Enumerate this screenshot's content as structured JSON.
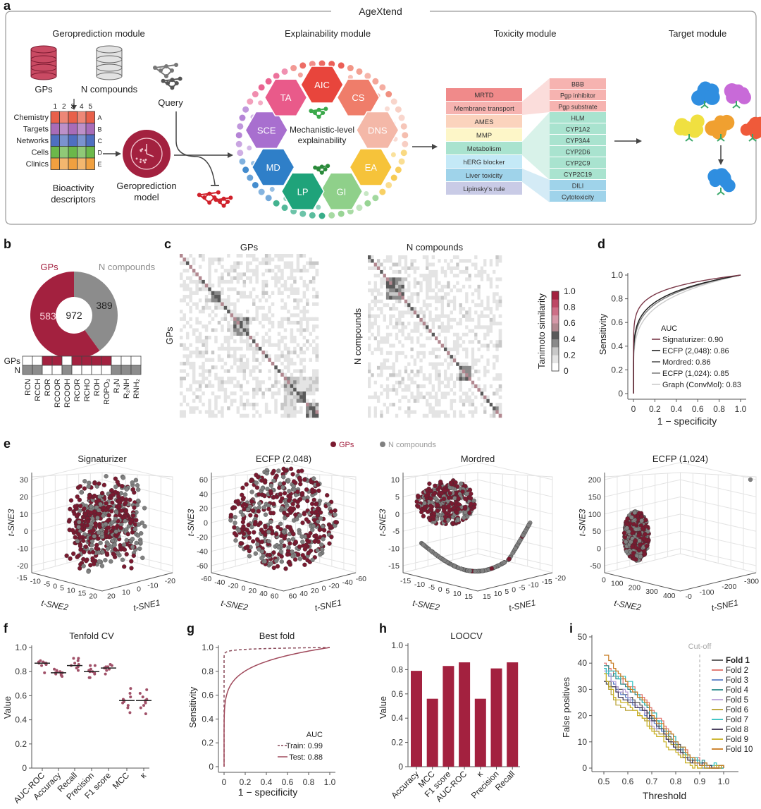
{
  "colors": {
    "gp": "#a3213f",
    "n": "#8c8c8c",
    "axis": "#555555"
  },
  "panel_labels": {
    "a": "a",
    "b": "b",
    "c": "c",
    "d": "d",
    "e": "e",
    "f": "f",
    "g": "g",
    "h": "h",
    "i": "i"
  },
  "panel_a": {
    "title": "AgeXtend",
    "modules": [
      "Geroprediction module",
      "Explainability module",
      "Toxicity module",
      "Target module"
    ],
    "databases": [
      "GPs",
      "N compounds"
    ],
    "descriptor_rows": [
      "Chemistry",
      "Targets",
      "Networks",
      "Cells",
      "Clinics"
    ],
    "descriptor_row_colors": [
      "#e8604a",
      "#a86cb8",
      "#4f6fc0",
      "#6cb84a",
      "#f0a040"
    ],
    "descriptor_cols": [
      "1",
      "2",
      "3",
      "4",
      "5"
    ],
    "descriptor_letters": [
      "A",
      "B",
      "C",
      "D",
      "E"
    ],
    "descriptors_label": [
      "Bioactivity",
      "descriptors"
    ],
    "model_label": [
      "Geroprediction",
      "model"
    ],
    "query_label": "Query",
    "center_label": [
      "Mechanistic-level",
      "explainability"
    ],
    "hallmarks": [
      {
        "label": "AIC",
        "color": "#e8453c"
      },
      {
        "label": "CS",
        "color": "#ef7d6a"
      },
      {
        "label": "DNS",
        "color": "#f4b8a8"
      },
      {
        "label": "EA",
        "color": "#f6c33a"
      },
      {
        "label": "GI",
        "color": "#8fd08a"
      },
      {
        "label": "LP",
        "color": "#1fa37a"
      },
      {
        "label": "MD",
        "color": "#2f7fc8"
      },
      {
        "label": "SCE",
        "color": "#a86fcf"
      },
      {
        "label": "TA",
        "color": "#e95a8a"
      }
    ],
    "toxicity_categories": [
      {
        "label": "MRTD",
        "color": "#f08a8a"
      },
      {
        "label": "Membrane transport",
        "color": "#f6b3b0"
      },
      {
        "label": "AMES",
        "color": "#fbd3bd"
      },
      {
        "label": "MMP",
        "color": "#fdf6c8"
      },
      {
        "label": "Metabolism",
        "color": "#a9e3cf"
      },
      {
        "label": "hERG blocker",
        "color": "#c4e9f7"
      },
      {
        "label": "Liver toxicity",
        "color": "#9fd3ea"
      },
      {
        "label": "Lipinsky's rule",
        "color": "#c9cbe6"
      }
    ],
    "toxicity_endpoints": [
      {
        "label": "BBB",
        "color": "#f6b3b0"
      },
      {
        "label": "Pgp inhibitor",
        "color": "#f6b3b0"
      },
      {
        "label": "Pgp substrate",
        "color": "#f6b3b0"
      },
      {
        "label": "HLM",
        "color": "#a9e3cf"
      },
      {
        "label": "CYP1A2",
        "color": "#a9e3cf"
      },
      {
        "label": "CYP3A4",
        "color": "#a9e3cf"
      },
      {
        "label": "CYP2D6",
        "color": "#a9e3cf"
      },
      {
        "label": "CYP2C9",
        "color": "#a9e3cf"
      },
      {
        "label": "CYP2C19",
        "color": "#a9e3cf"
      },
      {
        "label": "DILI",
        "color": "#9fd3ea"
      },
      {
        "label": "Cytotoxicity",
        "color": "#9fd3ea"
      }
    ],
    "target_colors": [
      "#2f8ee0",
      "#c86ad8",
      "#f0e040",
      "#f0a030",
      "#ef5a3a",
      "#2f8ee0"
    ]
  },
  "chart_data": [
    {
      "panel": "b",
      "type": "pie",
      "series": [
        {
          "name": "GPs",
          "value": 583
        },
        {
          "name": "N compounds",
          "value": 389
        }
      ],
      "total": 972
    },
    {
      "panel": "b",
      "type": "table",
      "rows": [
        "GPs",
        "N"
      ],
      "columns": [
        "RCN",
        "RCCH",
        "ROR",
        "RCOOR",
        "RCOOH",
        "RCOR",
        "RCHO",
        "ROH",
        "ROPO₃",
        "R₃N",
        "R₂NH",
        "RNH₂"
      ],
      "GPs": [
        0,
        0,
        1,
        1,
        0,
        1,
        1,
        1,
        1,
        0,
        0,
        0
      ],
      "N": [
        1,
        1,
        0,
        0,
        1,
        0,
        0,
        0,
        0,
        1,
        1,
        1
      ]
    },
    {
      "panel": "c",
      "type": "heatmap",
      "maps": [
        {
          "title": "GPs",
          "ylabel": "GPs"
        },
        {
          "title": "N compounds",
          "ylabel": "N compounds"
        }
      ],
      "colorbar": {
        "label": "Tanimoto similarity",
        "ticks": [
          "0",
          "0.2",
          "0.4",
          "0.6",
          "0.8",
          "1.0"
        ],
        "range": [
          0,
          1
        ]
      }
    },
    {
      "panel": "d",
      "type": "line",
      "xlabel": "1 − specificity",
      "ylabel": "Sensitivity",
      "xticks": [
        "0",
        "0.2",
        "0.4",
        "0.6",
        "0.8",
        "1.0"
      ],
      "yticks": [
        "0",
        "0.2",
        "0.4",
        "0.6",
        "0.8",
        "1.0"
      ],
      "xlim": [
        0,
        1
      ],
      "ylim": [
        0,
        1
      ],
      "legend_title": "AUC",
      "series": [
        {
          "name": "Signaturizer: 0.90",
          "auc": 0.9,
          "color": "#7a3848"
        },
        {
          "name": "ECFP (2,048): 0.86",
          "auc": 0.86,
          "color": "#222222"
        },
        {
          "name": "Mordred: 0.86",
          "auc": 0.86,
          "color": "#555555"
        },
        {
          "name": "ECFP (1,024): 0.85",
          "auc": 0.85,
          "color": "#808080"
        },
        {
          "name": "Graph (ConvMol): 0.83",
          "auc": 0.83,
          "color": "#cccccc"
        }
      ]
    },
    {
      "panel": "e",
      "type": "scatter",
      "legend": [
        {
          "name": "GPs",
          "color": "#7a1a30"
        },
        {
          "name": "N compounds",
          "color": "#808080"
        }
      ],
      "axis_labels": {
        "z": "t-SNE3",
        "x2": "t-SNE2",
        "x1": "t-SNE1"
      },
      "plots": [
        {
          "title": "Signaturizer",
          "zticks": [
            "-20",
            "-10",
            "0",
            "10",
            "20",
            "30"
          ],
          "x2ticks": [
            "-15",
            "-10",
            "-5",
            "0",
            "5",
            "10",
            "15",
            "20"
          ],
          "x1ticks": [
            "20",
            "10",
            "0",
            "-10",
            "-20"
          ],
          "shape": "blob"
        },
        {
          "title": "ECFP (2,048)",
          "zticks": [
            "-60",
            "-40",
            "-20",
            "0",
            "20",
            "40",
            "60"
          ],
          "x2ticks": [
            "-60",
            "-40",
            "-20",
            "0",
            "20",
            "40",
            "60"
          ],
          "x1ticks": [
            "60",
            "40",
            "20",
            "0",
            "-20",
            "-40",
            "-60"
          ],
          "shape": "sphere"
        },
        {
          "title": "Mordred",
          "zticks": [
            "-15",
            "-10",
            "-5",
            "0",
            "5",
            "10"
          ],
          "x2ticks": [
            "-15",
            "-10",
            "-5",
            "0",
            "5",
            "10",
            "15"
          ],
          "x1ticks": [
            "15",
            "10",
            "5",
            "0",
            "-5",
            "-10",
            "-15",
            "-20"
          ],
          "shape": "cluster-arc"
        },
        {
          "title": "ECFP (1,024)",
          "zticks": [
            "-50",
            "0",
            "50",
            "100",
            "150",
            "200"
          ],
          "x2ticks": [
            "0",
            "100",
            "200",
            "300",
            "400"
          ],
          "x1ticks": [
            "-0",
            "-100",
            "-200",
            "-300"
          ],
          "shape": "cluster-outlier"
        }
      ]
    },
    {
      "panel": "f",
      "type": "scatter",
      "title": "Tenfold CV",
      "ylabel": "Value",
      "ylim": [
        0,
        1
      ],
      "yticks": [
        "0",
        "0.2",
        "0.4",
        "0.6",
        "0.8",
        "1.0"
      ],
      "categories": [
        "AUC-ROC",
        "Accuracy",
        "Recall",
        "Precision",
        "F1 score",
        "MCC",
        "κ"
      ],
      "medians": [
        0.87,
        0.79,
        0.85,
        0.8,
        0.83,
        0.56,
        0.56
      ],
      "points": [
        [
          0.79,
          0.85,
          0.86,
          0.87,
          0.87,
          0.88,
          0.88,
          0.89,
          0.86,
          0.87
        ],
        [
          0.76,
          0.77,
          0.78,
          0.79,
          0.79,
          0.8,
          0.8,
          0.81,
          0.82,
          0.78
        ],
        [
          0.81,
          0.83,
          0.84,
          0.85,
          0.85,
          0.86,
          0.87,
          0.89,
          0.91,
          0.91
        ],
        [
          0.75,
          0.75,
          0.78,
          0.79,
          0.8,
          0.8,
          0.81,
          0.82,
          0.85,
          0.85
        ],
        [
          0.78,
          0.81,
          0.82,
          0.83,
          0.83,
          0.84,
          0.84,
          0.85,
          0.86,
          0.83
        ],
        [
          0.46,
          0.5,
          0.52,
          0.54,
          0.55,
          0.56,
          0.57,
          0.59,
          0.62,
          0.66
        ],
        [
          0.45,
          0.5,
          0.52,
          0.54,
          0.55,
          0.56,
          0.57,
          0.59,
          0.62,
          0.65
        ]
      ]
    },
    {
      "panel": "g",
      "type": "line",
      "title": "Best fold",
      "xlabel": "1 − specificity",
      "ylabel": "Sensitivity",
      "xticks": [
        "0",
        "0.2",
        "0.4",
        "0.6",
        "0.8",
        "1.0"
      ],
      "yticks": [
        "0",
        "0.2",
        "0.4",
        "0.6",
        "0.8",
        "1.0"
      ],
      "xlim": [
        0,
        1
      ],
      "ylim": [
        0,
        1
      ],
      "legend_title": "AUC",
      "series": [
        {
          "name": "Train: 0.99",
          "auc": 0.99,
          "color": "#8a4a5a",
          "dashed": true
        },
        {
          "name": "Test: 0.88",
          "auc": 0.88,
          "color": "#a04a5c",
          "dashed": false
        }
      ]
    },
    {
      "panel": "h",
      "type": "bar",
      "title": "LOOCV",
      "ylabel": "Value",
      "ylim": [
        0,
        1
      ],
      "yticks": [
        "0",
        "0.2",
        "0.4",
        "0.6",
        "0.8",
        "1.0"
      ],
      "categories": [
        "Accuracy",
        "MCC",
        "F1 score",
        "AUC-ROC",
        "κ",
        "Precision",
        "Recall"
      ],
      "values": [
        0.79,
        0.56,
        0.83,
        0.86,
        0.56,
        0.81,
        0.86
      ]
    },
    {
      "panel": "i",
      "type": "line",
      "xlabel": "Threshold",
      "ylabel": "False positives",
      "xticks": [
        "0.5",
        "0.6",
        "0.7",
        "0.8",
        "0.9",
        "1.0"
      ],
      "yticks": [
        "0",
        "10",
        "20",
        "30",
        "40",
        "50"
      ],
      "xlim": [
        0.45,
        1.05
      ],
      "ylim": [
        0,
        50
      ],
      "cutoff": {
        "label": "Cut-off",
        "x": 0.9
      },
      "x": [
        0.5,
        0.55,
        0.6,
        0.65,
        0.7,
        0.75,
        0.8,
        0.85,
        0.9,
        0.95,
        1.0
      ],
      "series": [
        {
          "name": "Fold 1",
          "color": "#555555",
          "values": [
            33,
            31,
            27,
            24,
            19,
            14,
            9,
            5,
            1,
            0,
            0
          ]
        },
        {
          "name": "Fold 2",
          "color": "#e0706a",
          "values": [
            40,
            35,
            31,
            28,
            22,
            16,
            10,
            5,
            2,
            0,
            0
          ]
        },
        {
          "name": "Fold 3",
          "color": "#5b7fc7",
          "values": [
            38,
            30,
            26,
            22,
            18,
            13,
            8,
            4,
            1,
            0,
            0
          ]
        },
        {
          "name": "Fold 4",
          "color": "#2a8a8a",
          "values": [
            39,
            34,
            30,
            26,
            19,
            14,
            9,
            5,
            2,
            0,
            0
          ]
        },
        {
          "name": "Fold 5",
          "color": "#b9a0d8",
          "values": [
            37,
            31,
            27,
            23,
            16,
            12,
            7,
            3,
            1,
            0,
            0
          ]
        },
        {
          "name": "Fold 6",
          "color": "#b8a030",
          "values": [
            36,
            24,
            22,
            20,
            15,
            12,
            8,
            3,
            0,
            0,
            0
          ]
        },
        {
          "name": "Fold 7",
          "color": "#30c0c0",
          "values": [
            38,
            35,
            33,
            27,
            21,
            15,
            10,
            5,
            2,
            1,
            0
          ]
        },
        {
          "name": "Fold 8",
          "color": "#3a3050",
          "values": [
            33,
            29,
            25,
            23,
            18,
            13,
            7,
            3,
            1,
            0,
            0
          ]
        },
        {
          "name": "Fold 9",
          "color": "#c8b020",
          "values": [
            36,
            26,
            24,
            20,
            14,
            10,
            6,
            2,
            0,
            0,
            0
          ]
        },
        {
          "name": "Fold 10",
          "color": "#c87a20",
          "values": [
            43,
            37,
            31,
            27,
            20,
            15,
            10,
            5,
            1,
            0,
            0
          ]
        }
      ]
    }
  ]
}
